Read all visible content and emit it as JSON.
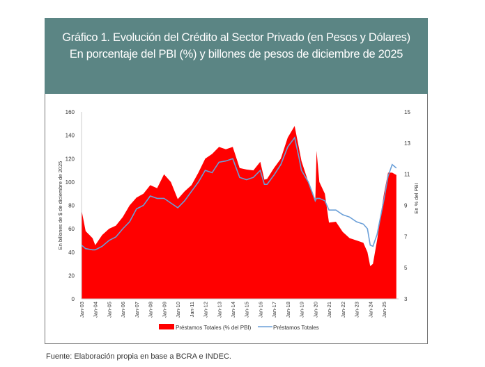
{
  "header": {
    "title_line1": "Gráfico 1. Evolución del Crédito al Sector Privado (en Pesos y Dólares)",
    "title_line2": "En porcentaje del PBI (%) y billones de pesos de diciembre de 2025"
  },
  "footer": {
    "source": "Fuente: Elaboración propia en base a BCRA e INDEC."
  },
  "chart_data": {
    "type": "area+line",
    "ylabel_left": "En billones de $ de diciembre de 2025",
    "ylabel_right": "En % del PBI",
    "ylim_left": [
      0,
      160
    ],
    "yticks_left": [
      "0",
      "20",
      "40",
      "60",
      "80",
      "100",
      "120",
      "140",
      "160"
    ],
    "ylim_right": [
      3,
      15
    ],
    "yticks_right": [
      "3",
      "5",
      "7",
      "9",
      "11",
      "13",
      "15"
    ],
    "xticks": [
      "Jan-03",
      "Jan-04",
      "Jan-05",
      "Jan-06",
      "Jan-07",
      "Jan-08",
      "Jan-09",
      "Jan-10",
      "Jan-11",
      "Jan-12",
      "Jan-13",
      "Jan-14",
      "Jan-15",
      "Jan-16",
      "Jan-17",
      "Jan-18",
      "Jan-19",
      "Jan-20",
      "Jan-21",
      "Jan-22",
      "Jan-23",
      "Jan-24",
      "Jan-25"
    ],
    "colors": {
      "area": "#ff0000",
      "line": "#6a9fd8"
    },
    "legend": {
      "area": "Préstamos Totales (% del PBI)",
      "line": "Préstamos Totales",
      "placement": "bottom"
    },
    "x": [
      2003.0,
      2003.3,
      2003.8,
      2004.0,
      2004.5,
      2005.0,
      2005.5,
      2006.0,
      2006.5,
      2007.0,
      2007.5,
      2008.0,
      2008.5,
      2009.0,
      2009.5,
      2010.0,
      2010.5,
      2011.0,
      2011.5,
      2012.0,
      2012.5,
      2013.0,
      2013.5,
      2014.0,
      2014.5,
      2015.0,
      2015.5,
      2016.0,
      2016.3,
      2016.5,
      2017.0,
      2017.5,
      2018.0,
      2018.5,
      2018.8,
      2019.0,
      2019.5,
      2020.0,
      2020.1,
      2020.3,
      2020.7,
      2021.0,
      2021.5,
      2022.0,
      2022.5,
      2023.0,
      2023.5,
      2023.8,
      2024.0,
      2024.2,
      2024.5,
      2025.0,
      2025.3,
      2025.6,
      2025.9
    ],
    "series": [
      {
        "name": "Préstamos Totales (% del PBI)",
        "axis": "right",
        "values": [
          8.7,
          7.35,
          6.9,
          6.45,
          7.1,
          7.5,
          7.7,
          8.25,
          9.0,
          9.5,
          9.75,
          10.3,
          10.1,
          11.0,
          10.5,
          9.4,
          9.9,
          10.3,
          11.1,
          12.0,
          12.3,
          12.75,
          12.6,
          12.75,
          11.4,
          11.3,
          11.25,
          11.8,
          10.65,
          10.7,
          11.4,
          12.0,
          13.35,
          14.1,
          12.75,
          11.85,
          10.5,
          9.2,
          12.5,
          10.5,
          9.75,
          7.9,
          7.95,
          7.3,
          6.9,
          6.75,
          6.6,
          6.0,
          5.1,
          5.25,
          6.75,
          9.75,
          11.1,
          11.1,
          10.95
        ]
      },
      {
        "name": "Préstamos Totales",
        "axis": "left",
        "values": [
          46,
          43,
          42,
          42,
          45,
          50,
          53,
          60,
          66,
          77,
          80,
          88,
          86,
          86,
          82,
          78,
          84,
          92,
          100,
          110,
          108,
          117,
          118,
          120,
          104,
          102,
          104,
          110,
          98,
          98,
          106,
          115,
          130,
          138,
          122,
          110,
          100,
          84,
          86,
          86,
          84,
          76,
          76,
          72,
          70,
          66,
          64,
          60,
          46,
          45,
          55,
          85,
          105,
          115,
          112
        ]
      }
    ]
  }
}
